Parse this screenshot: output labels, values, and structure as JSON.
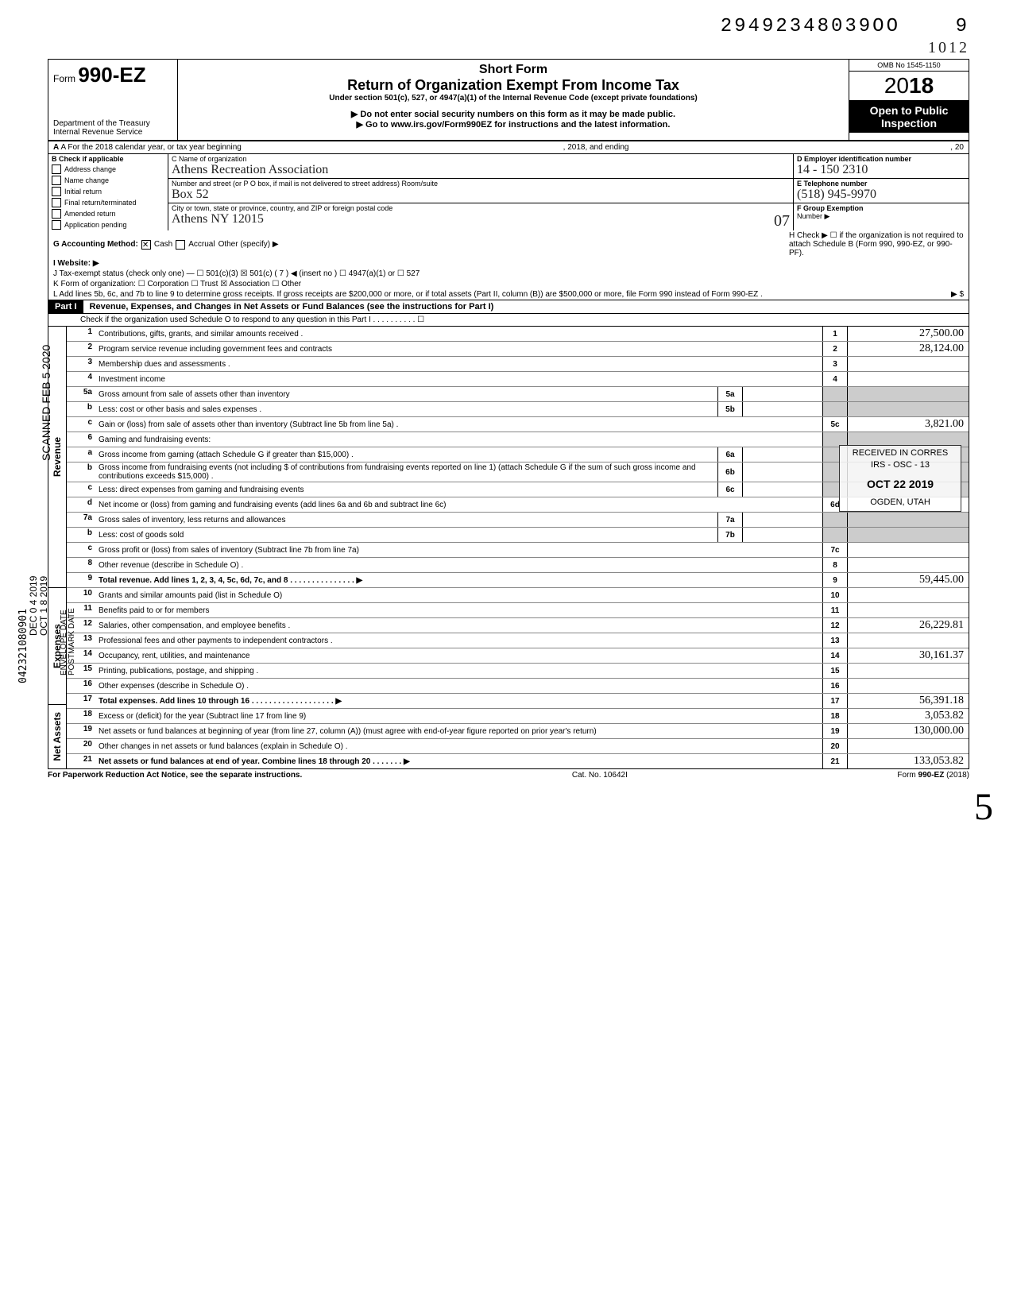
{
  "top": {
    "code": "29492348039OO",
    "code_suffix": "9",
    "year_hand": "1012"
  },
  "header": {
    "form_prefix": "Form",
    "form_number": "990-EZ",
    "dept": "Department of the Treasury",
    "irs": "Internal Revenue Service",
    "short_form": "Short Form",
    "title": "Return of Organization Exempt From Income Tax",
    "subtitle": "Under section 501(c), 527, or 4947(a)(1) of the Internal Revenue Code (except private foundations)",
    "arrow1": "▶ Do not enter social security numbers on this form as it may be made public.",
    "arrow2": "▶ Go to www.irs.gov/Form990EZ for instructions and the latest information.",
    "omb": "OMB No 1545-1150",
    "year": "2018",
    "open": "Open to Public Inspection"
  },
  "rowA": {
    "left": "A For the 2018 calendar year, or tax year beginning",
    "mid": ", 2018, and ending",
    "right": ", 20"
  },
  "colB": {
    "header": "B  Check if applicable",
    "items": [
      "Address change",
      "Name change",
      "Initial return",
      "Final return/terminated",
      "Amended return",
      "Application pending"
    ]
  },
  "colC": {
    "c_label": "C  Name of organization",
    "c_value": "Athens Recreation Association",
    "addr_label": "Number and street (or P O  box, if mail is not delivered to street address)            Room/suite",
    "addr_value": "Box 52",
    "city_label": "City or town, state or province, country, and ZIP or foreign postal code",
    "city_value": "Athens  NY  12015",
    "city_suffix": "07"
  },
  "colD": {
    "d_label": "D Employer identification number",
    "d_value": "14 - 150 2310",
    "e_label": "E Telephone number",
    "e_value": "(518) 945-9970",
    "f_label": "F Group Exemption",
    "f_label2": "Number ▶"
  },
  "linesGtoL": {
    "g": "G  Accounting Method:",
    "g_cash": "Cash",
    "g_accrual": "Accrual",
    "g_other": "Other (specify) ▶",
    "h": "H  Check ▶ ☐ if the organization is not required to attach Schedule B (Form 990, 990-EZ, or 990-PF).",
    "i": "I  Website: ▶",
    "j": "J  Tax-exempt status (check only one) — ☐ 501(c)(3)   ☒ 501(c) ( 7 ) ◀ (insert no ) ☐ 4947(a)(1) or   ☐ 527",
    "k": "K  Form of organization:   ☐ Corporation    ☐ Trust    ☒ Association    ☐ Other",
    "l": "L  Add lines 5b, 6c, and 7b to line 9 to determine gross receipts. If gross receipts are $200,000 or more, or if total assets (Part II, column (B)) are $500,000 or more, file Form 990 instead of Form 990-EZ .",
    "l_arrow": "▶  $"
  },
  "part1": {
    "label": "Part I",
    "title": "Revenue, Expenses, and Changes in Net Assets or Fund Balances (see the instructions for Part I)",
    "check": "Check if the organization used Schedule O to respond to any question in this Part I . . . . . . . . . . ☐"
  },
  "sidebars": {
    "revenue": "Revenue",
    "expenses": "Expenses",
    "netassets": "Net Assets"
  },
  "rows": [
    {
      "n": "1",
      "d": "Contributions, gifts, grants, and similar amounts received .",
      "box": "1",
      "val": "27,500.00"
    },
    {
      "n": "2",
      "d": "Program service revenue including government fees and contracts",
      "box": "2",
      "val": "28,124.00"
    },
    {
      "n": "3",
      "d": "Membership dues and assessments .",
      "box": "3",
      "val": ""
    },
    {
      "n": "4",
      "d": "Investment income",
      "box": "4",
      "val": ""
    },
    {
      "n": "5a",
      "d": "Gross amount from sale of assets other than inventory",
      "inbox": "5a",
      "inval": "",
      "shade": true
    },
    {
      "n": "b",
      "d": "Less: cost or other basis and sales expenses .",
      "inbox": "5b",
      "inval": "",
      "shade": true
    },
    {
      "n": "c",
      "d": "Gain or (loss) from sale of assets other than inventory (Subtract line 5b from line 5a) .",
      "box": "5c",
      "val": "3,821.00"
    },
    {
      "n": "6",
      "d": "Gaming and fundraising events:",
      "shade": true
    },
    {
      "n": "a",
      "d": "Gross income from gaming (attach Schedule G if greater than $15,000) .",
      "inbox": "6a",
      "inval": "",
      "shade": true
    },
    {
      "n": "b",
      "d": "Gross income from fundraising events (not including  $                    of contributions from fundraising events reported on line 1) (attach Schedule G if the sum of such gross income and contributions exceeds $15,000) .",
      "inbox": "6b",
      "inval": "",
      "shade": true
    },
    {
      "n": "c",
      "d": "Less: direct expenses from gaming and fundraising events",
      "inbox": "6c",
      "inval": "",
      "shade": true
    },
    {
      "n": "d",
      "d": "Net income or (loss) from gaming and fundraising events (add lines 6a and 6b and subtract line 6c)",
      "box": "6d",
      "val": ""
    },
    {
      "n": "7a",
      "d": "Gross sales of inventory, less returns and allowances",
      "inbox": "7a",
      "inval": "",
      "shade": true
    },
    {
      "n": "b",
      "d": "Less: cost of goods sold",
      "inbox": "7b",
      "inval": "",
      "shade": true
    },
    {
      "n": "c",
      "d": "Gross profit or (loss) from sales of inventory (Subtract line 7b from line 7a)",
      "box": "7c",
      "val": ""
    },
    {
      "n": "8",
      "d": "Other revenue (describe in Schedule O) .",
      "box": "8",
      "val": ""
    },
    {
      "n": "9",
      "d": "Total revenue. Add lines 1, 2, 3, 4, 5c, 6d, 7c, and 8   . . . . . . . . . . . . . . . ▶",
      "box": "9",
      "val": "59,445.00",
      "bold": true
    },
    {
      "n": "10",
      "d": "Grants and similar amounts paid (list in Schedule O)",
      "box": "10",
      "val": ""
    },
    {
      "n": "11",
      "d": "Benefits paid to or for members",
      "box": "11",
      "val": ""
    },
    {
      "n": "12",
      "d": "Salaries, other compensation, and employee benefits .",
      "box": "12",
      "val": "26,229.81"
    },
    {
      "n": "13",
      "d": "Professional fees and other payments to independent contractors .",
      "box": "13",
      "val": ""
    },
    {
      "n": "14",
      "d": "Occupancy, rent, utilities, and maintenance",
      "box": "14",
      "val": "30,161.37"
    },
    {
      "n": "15",
      "d": "Printing, publications, postage, and shipping .",
      "box": "15",
      "val": ""
    },
    {
      "n": "16",
      "d": "Other expenses (describe in Schedule O) .",
      "box": "16",
      "val": ""
    },
    {
      "n": "17",
      "d": "Total expenses. Add lines 10 through 16  . . . . . . . . . . . . . . . . . . . ▶",
      "box": "17",
      "val": "56,391.18",
      "bold": true
    },
    {
      "n": "18",
      "d": "Excess or (deficit) for the year (Subtract line 17 from line 9)",
      "box": "18",
      "val": "3,053.82"
    },
    {
      "n": "19",
      "d": "Net assets or fund balances at beginning of year (from line 27, column (A)) (must agree with end-of-year figure reported on prior year's return)",
      "box": "19",
      "val": "130,000.00"
    },
    {
      "n": "20",
      "d": "Other changes in net assets or fund balances (explain in Schedule O) .",
      "box": "20",
      "val": ""
    },
    {
      "n": "21",
      "d": "Net assets or fund balances at end of year. Combine lines 18 through 20   . . . . . . . ▶",
      "box": "21",
      "val": "133,053.82",
      "bold": true
    }
  ],
  "footer": {
    "left": "For Paperwork Reduction Act Notice, see the separate instructions.",
    "mid": "Cat. No. 10642I",
    "right": "Form 990-EZ (2018)"
  },
  "stamp": {
    "l1": "RECEIVED IN CORRES",
    "l2": "IRS - OSC - 13",
    "l3": "OCT 22 2019",
    "l4": "OGDEN, UTAH"
  },
  "margin": {
    "scanned": "SCANNED FEB 5 2020",
    "env": "ENVELOPE DATE",
    "post": "POSTMARK DATE",
    "date1": "DEC 0 4 2019",
    "date2": "OCT 1 8 2019",
    "nums": "042321080901"
  },
  "big5": "5"
}
